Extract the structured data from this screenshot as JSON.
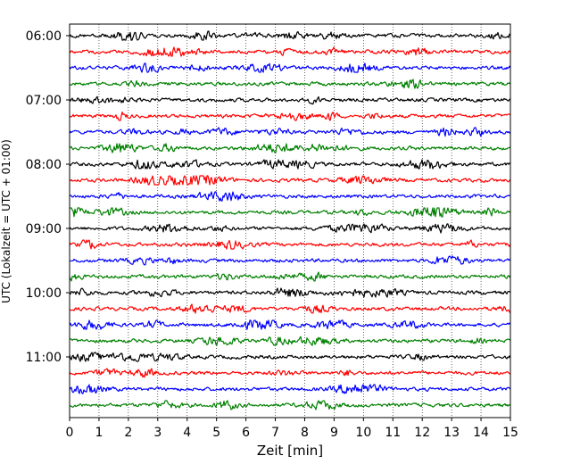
{
  "chart_data": {
    "type": "line",
    "title": "",
    "xlabel": "Zeit  [min]",
    "ylabel": "UTC (Lokalzeit = UTC + 01:00)",
    "xlim": [
      0,
      15
    ],
    "x_ticks": [
      "0",
      "1",
      "2",
      "3",
      "4",
      "5",
      "6",
      "7",
      "8",
      "9",
      "10",
      "11",
      "12",
      "13",
      "14",
      "15"
    ],
    "grid": "vertical dotted",
    "start_time": "06:00",
    "trace_interval_minutes": 15,
    "trace_count": 24,
    "y_tick_labels": [
      "06:00",
      "07:00",
      "08:00",
      "09:00",
      "10:00",
      "11:00"
    ],
    "trace_colors": [
      "#000000",
      "#ff0000",
      "#0000ff",
      "#008000"
    ]
  }
}
